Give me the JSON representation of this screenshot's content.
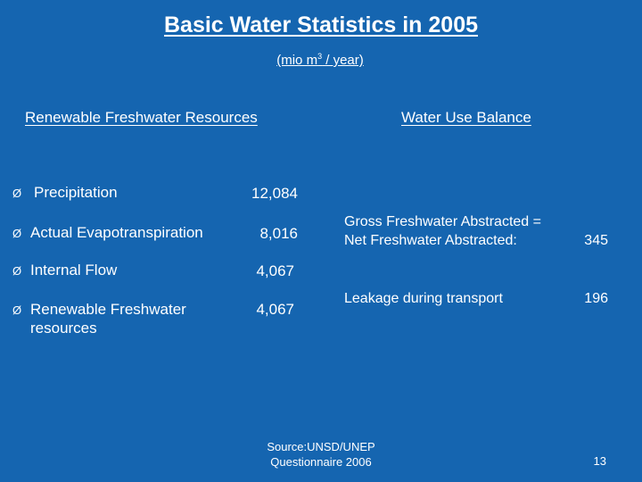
{
  "slide": {
    "title": "Basic Water Statistics in 2005",
    "unit_prefix": "(mio m",
    "unit_sup": "3",
    "unit_suffix": " / year)"
  },
  "resources": {
    "heading": "Renewable Freshwater Resources",
    "bullet_icon": "arrow-bullet-icon",
    "bullet_glyph": "Ø",
    "items": [
      {
        "label": "Precipitation",
        "value": "12,084"
      },
      {
        "label": "Actual Evapotranspiration",
        "value": "8,016"
      },
      {
        "label": "Internal Flow",
        "value": "4,067"
      },
      {
        "label_line1": "Renewable Freshwater",
        "label_line2": "resources",
        "value": "4,067"
      }
    ]
  },
  "balance": {
    "heading": "Water Use Balance",
    "gross_line1": "Gross Freshwater Abstracted =",
    "gross_line2": "Net Freshwater Abstracted:",
    "gross_value": "345",
    "leakage_label": "Leakage during transport",
    "leakage_value": "196"
  },
  "footer": {
    "source_line1": "Source:UNSD/UNEP",
    "source_line2": "Questionnaire 2006",
    "page_number": "13"
  },
  "colors": {
    "background": "#1565b0",
    "text": "#ffffff"
  }
}
